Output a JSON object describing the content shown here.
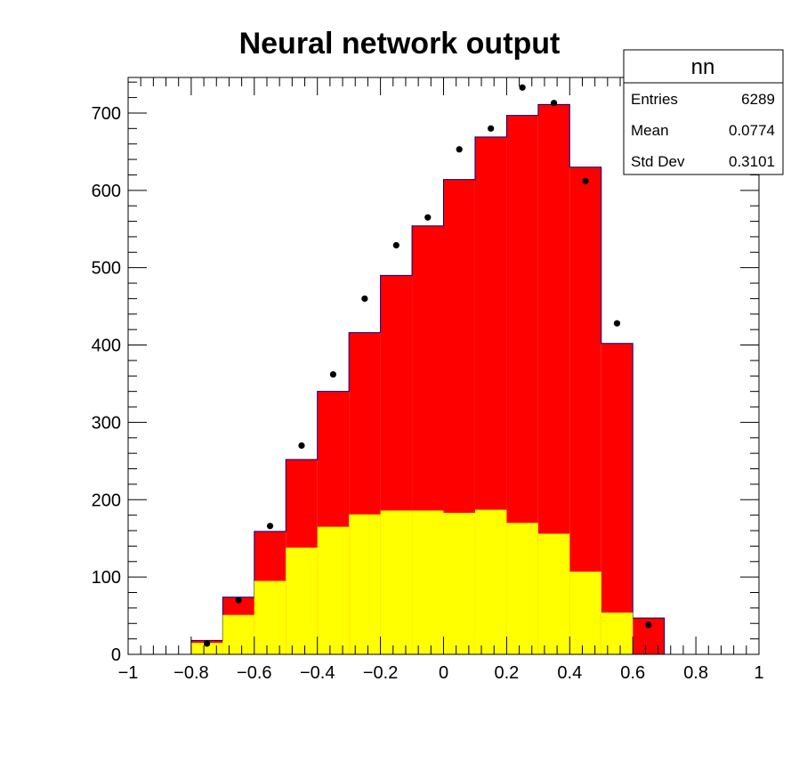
{
  "chart_data": {
    "type": "bar",
    "title": "Neural network output",
    "xlabel": "",
    "ylabel": "",
    "xlim": [
      -1,
      1
    ],
    "ylim": [
      0,
      746
    ],
    "grid": false,
    "x_tick_labels": [
      "−1",
      "−0.8",
      "−0.6",
      "−0.4",
      "−0.2",
      "0",
      "0.2",
      "0.4",
      "0.6",
      "0.8",
      "1"
    ],
    "y_tick_labels": [
      "0",
      "100",
      "200",
      "300",
      "400",
      "500",
      "600",
      "700"
    ],
    "bin_edges": [
      -0.8,
      -0.7,
      -0.6,
      -0.5,
      -0.4,
      -0.3,
      -0.2,
      -0.1,
      0.0,
      0.1,
      0.2,
      0.3,
      0.4,
      0.5,
      0.6,
      0.7
    ],
    "series": [
      {
        "style": "stacked-bottom-filled",
        "color": "#ffff00",
        "values": [
          15,
          51,
          95,
          138,
          165,
          181,
          186,
          186,
          183,
          187,
          170,
          156,
          107,
          54,
          0
        ]
      },
      {
        "style": "stacked-total-filled",
        "color": "#ff0000",
        "values": [
          18,
          74,
          159,
          252,
          340,
          416,
          490,
          554,
          614,
          669,
          697,
          711,
          630,
          402,
          47
        ]
      },
      {
        "style": "markers",
        "color": "#000000",
        "x": [
          -0.75,
          -0.65,
          -0.55,
          -0.45,
          -0.35,
          -0.25,
          -0.15,
          -0.05,
          0.05,
          0.15,
          0.25,
          0.35,
          0.45,
          0.55,
          0.65
        ],
        "values": [
          14,
          70,
          166,
          270,
          362,
          460,
          529,
          565,
          653,
          680,
          733,
          713,
          612,
          428,
          38
        ]
      }
    ]
  },
  "stats_box": {
    "title": "nn",
    "rows": [
      {
        "label": "Entries",
        "value": "6289"
      },
      {
        "label": "Mean",
        "value": "0.0774"
      },
      {
        "label": "Std Dev",
        "value": "0.3101"
      }
    ]
  }
}
